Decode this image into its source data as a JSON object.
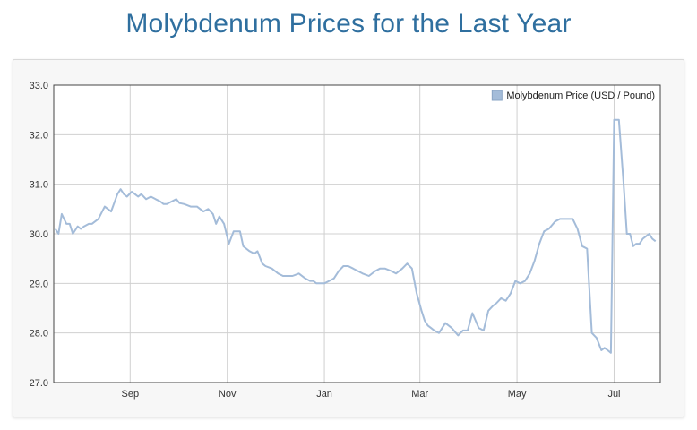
{
  "page": {
    "title": "Molybdenum Prices for the Last Year"
  },
  "chart_data": {
    "type": "line",
    "title": "Molybdenum Prices for the Last Year",
    "xlabel": "",
    "ylabel": "",
    "ylim": [
      27.0,
      33.0
    ],
    "yticks": [
      "27.0",
      "28.0",
      "29.0",
      "30.0",
      "31.0",
      "32.0",
      "33.0"
    ],
    "xticks": [
      "Sep",
      "Nov",
      "Jan",
      "Mar",
      "May",
      "Jul"
    ],
    "grid": true,
    "legend": {
      "position": "top-right",
      "entries": [
        "Molybdenum Price (USD / Pound)"
      ]
    },
    "series": [
      {
        "name": "Molybdenum Price (USD / Pound)",
        "color": "#a4bcd9",
        "x": [
          "2019-07-16",
          "2019-07-18",
          "2019-07-20",
          "2019-07-23",
          "2019-07-25",
          "2019-07-27",
          "2019-07-30",
          "2019-08-01",
          "2019-08-03",
          "2019-08-06",
          "2019-08-08",
          "2019-08-12",
          "2019-08-16",
          "2019-08-20",
          "2019-08-24",
          "2019-08-26",
          "2019-08-28",
          "2019-08-30",
          "2019-09-02",
          "2019-09-04",
          "2019-09-06",
          "2019-09-08",
          "2019-09-11",
          "2019-09-14",
          "2019-09-17",
          "2019-09-20",
          "2019-09-22",
          "2019-09-24",
          "2019-09-27",
          "2019-09-30",
          "2019-10-02",
          "2019-10-05",
          "2019-10-09",
          "2019-10-13",
          "2019-10-17",
          "2019-10-20",
          "2019-10-23",
          "2019-10-25",
          "2019-10-27",
          "2019-10-30",
          "2019-11-02",
          "2019-11-05",
          "2019-11-07",
          "2019-11-09",
          "2019-11-11",
          "2019-11-13",
          "2019-11-15",
          "2019-11-18",
          "2019-11-20",
          "2019-11-23",
          "2019-11-25",
          "2019-11-29",
          "2019-12-03",
          "2019-12-06",
          "2019-12-08",
          "2019-12-12",
          "2019-12-16",
          "2019-12-20",
          "2019-12-23",
          "2019-12-25",
          "2019-12-27",
          "2019-12-29",
          "2020-01-01",
          "2020-01-04",
          "2020-01-07",
          "2020-01-10",
          "2020-01-13",
          "2020-01-16",
          "2020-01-19",
          "2020-01-22",
          "2020-01-25",
          "2020-01-29",
          "2020-02-02",
          "2020-02-05",
          "2020-02-08",
          "2020-02-12",
          "2020-02-15",
          "2020-02-19",
          "2020-02-22",
          "2020-02-25",
          "2020-02-28",
          "2020-03-02",
          "2020-03-04",
          "2020-03-06",
          "2020-03-08",
          "2020-03-10",
          "2020-03-13",
          "2020-03-17",
          "2020-03-21",
          "2020-03-25",
          "2020-03-28",
          "2020-03-31",
          "2020-04-03",
          "2020-04-07",
          "2020-04-10",
          "2020-04-13",
          "2020-04-16",
          "2020-04-18",
          "2020-04-21",
          "2020-04-24",
          "2020-04-27",
          "2020-04-30",
          "2020-05-03",
          "2020-05-06",
          "2020-05-09",
          "2020-05-12",
          "2020-05-15",
          "2020-05-18",
          "2020-05-21",
          "2020-05-25",
          "2020-05-28",
          "2020-05-31",
          "2020-06-02",
          "2020-06-05",
          "2020-06-08",
          "2020-06-11",
          "2020-06-14",
          "2020-06-17",
          "2020-06-20",
          "2020-06-23",
          "2020-06-25",
          "2020-06-27",
          "2020-06-29",
          "2020-07-01",
          "2020-07-04",
          "2020-07-07",
          "2020-07-09",
          "2020-07-11",
          "2020-07-13",
          "2020-07-15",
          "2020-07-17",
          "2020-07-19",
          "2020-07-21",
          "2020-07-23",
          "2020-07-25",
          "2020-07-27"
        ],
        "values": [
          30.1,
          30.0,
          30.4,
          30.2,
          30.2,
          30.0,
          30.15,
          30.1,
          30.15,
          30.2,
          30.2,
          30.3,
          30.55,
          30.45,
          30.8,
          30.9,
          30.8,
          30.75,
          30.85,
          30.8,
          30.75,
          30.8,
          30.7,
          30.75,
          30.7,
          30.65,
          30.6,
          30.6,
          30.65,
          30.7,
          30.62,
          30.6,
          30.55,
          30.55,
          30.45,
          30.5,
          30.4,
          30.2,
          30.35,
          30.2,
          29.8,
          30.05,
          30.05,
          30.05,
          29.75,
          29.7,
          29.65,
          29.6,
          29.65,
          29.4,
          29.35,
          29.3,
          29.2,
          29.15,
          29.15,
          29.15,
          29.2,
          29.1,
          29.05,
          29.05,
          29.0,
          29.0,
          29.0,
          29.05,
          29.1,
          29.25,
          29.35,
          29.35,
          29.3,
          29.25,
          29.2,
          29.15,
          29.25,
          29.3,
          29.3,
          29.25,
          29.2,
          29.3,
          29.4,
          29.3,
          28.8,
          28.45,
          28.25,
          28.15,
          28.1,
          28.05,
          28.0,
          28.2,
          28.1,
          27.95,
          28.05,
          28.05,
          28.4,
          28.1,
          28.05,
          28.45,
          28.55,
          28.6,
          28.7,
          28.65,
          28.8,
          29.05,
          29.0,
          29.05,
          29.2,
          29.45,
          29.8,
          30.05,
          30.1,
          30.25,
          30.3,
          30.3,
          30.3,
          30.3,
          30.1,
          29.75,
          29.7,
          28.0,
          27.9,
          27.65,
          27.7,
          27.65,
          27.6,
          32.3,
          32.3,
          31.0,
          30.0,
          30.0,
          29.75,
          29.8,
          29.8,
          29.9,
          29.95,
          30.0,
          29.9,
          29.85
        ]
      }
    ]
  }
}
